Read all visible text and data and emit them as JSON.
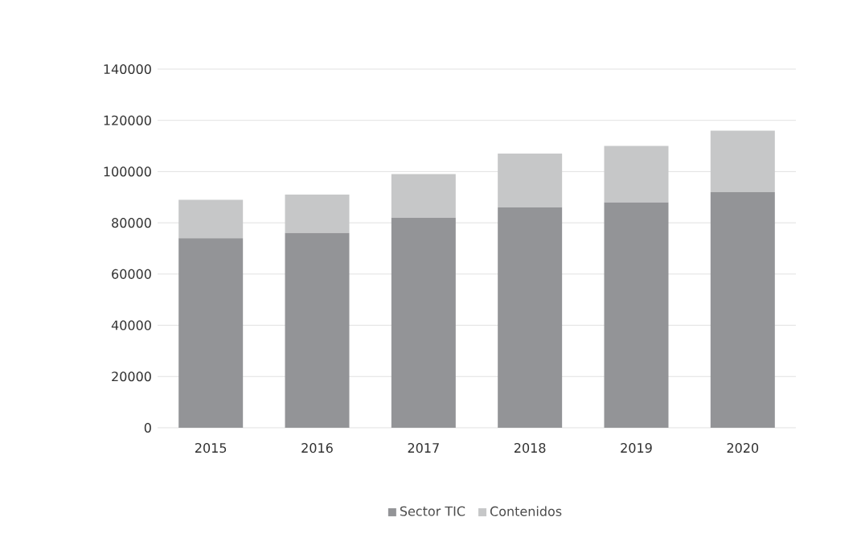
{
  "chart_data": {
    "type": "bar",
    "stacked": true,
    "categories": [
      "2015",
      "2016",
      "2017",
      "2018",
      "2019",
      "2020"
    ],
    "series": [
      {
        "name": "Sector TIC",
        "color": "#939497",
        "values": [
          74000,
          76000,
          82000,
          86000,
          88000,
          92000
        ]
      },
      {
        "name": "Contenidos",
        "color": "#c6c7c8",
        "values": [
          15000,
          15000,
          17000,
          21000,
          22000,
          24000
        ]
      }
    ],
    "ylim": [
      0,
      140000
    ],
    "yticks": [
      0,
      20000,
      40000,
      60000,
      80000,
      100000,
      120000,
      140000
    ],
    "grid": "y",
    "legend": "bottom"
  }
}
